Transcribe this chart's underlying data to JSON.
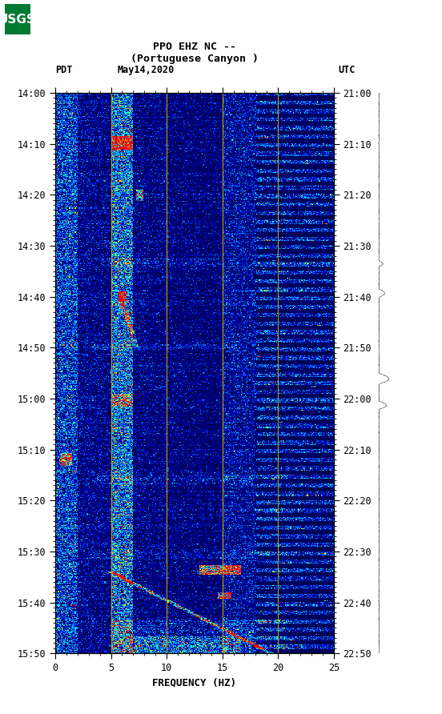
{
  "title_line1": "PPO EHZ NC --",
  "title_line2": "(Portuguese Canyon )",
  "date_label": "May14,2020",
  "left_tz": "PDT",
  "right_tz": "UTC",
  "left_times": [
    "14:00",
    "14:10",
    "14:20",
    "14:30",
    "14:40",
    "14:50",
    "15:00",
    "15:10",
    "15:20",
    "15:30",
    "15:40",
    "15:50"
  ],
  "right_times": [
    "21:00",
    "21:10",
    "21:20",
    "21:30",
    "21:40",
    "21:50",
    "22:00",
    "22:10",
    "22:20",
    "22:30",
    "22:40",
    "22:50"
  ],
  "freq_min": 0,
  "freq_max": 25,
  "freq_ticks": [
    0,
    5,
    10,
    15,
    20,
    25
  ],
  "freq_label": "FREQUENCY (HZ)",
  "vertical_lines": [
    5,
    10,
    15,
    20
  ],
  "background_color": "#ffffff",
  "spectrogram_seed": 12345,
  "cmap_colors": [
    [
      0.0,
      "#000050"
    ],
    [
      0.1,
      "#000090"
    ],
    [
      0.2,
      "#0000CC"
    ],
    [
      0.3,
      "#0050FF"
    ],
    [
      0.42,
      "#0099FF"
    ],
    [
      0.54,
      "#00CCFF"
    ],
    [
      0.64,
      "#00FFFF"
    ],
    [
      0.74,
      "#80FF40"
    ],
    [
      0.82,
      "#FFFF00"
    ],
    [
      0.9,
      "#FF8000"
    ],
    [
      0.96,
      "#FF2000"
    ],
    [
      1.0,
      "#FF0000"
    ]
  ]
}
